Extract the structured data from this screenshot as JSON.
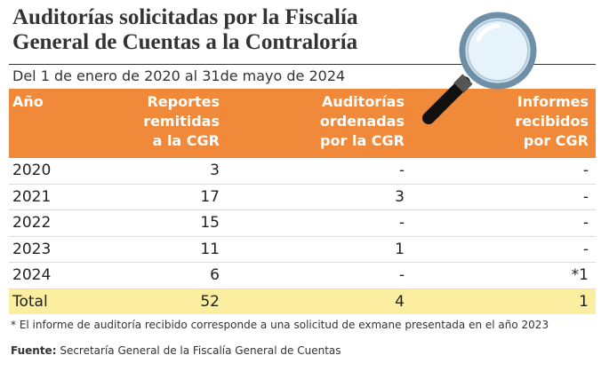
{
  "header": {
    "title": [
      "Auditorías solicitadas por la Fiscalía",
      "General de Cuentas a la Contraloría"
    ],
    "subtitle": "Del 1 de enero de 2020 al 31de mayo de 2024"
  },
  "table": {
    "columns": [
      [
        "Año"
      ],
      [
        "Reportes",
        "remitidas",
        "a la CGR"
      ],
      [
        "Auditorías",
        "ordenadas",
        "por la CGR"
      ],
      [
        "Informes",
        "recibidos",
        "por CGR"
      ]
    ],
    "rows": [
      [
        2020,
        3,
        "-",
        "-"
      ],
      [
        2021,
        17,
        3,
        "-"
      ],
      [
        2022,
        15,
        "-",
        "-"
      ],
      [
        2023,
        11,
        1,
        "-"
      ],
      [
        2024,
        6,
        "-",
        "*1"
      ]
    ],
    "total": [
      "Total",
      52,
      4,
      1
    ]
  },
  "footer": {
    "note": "* El informe de auditoría recibido corresponde a una solicitud de exmane presentada en el año 2023",
    "source_label": "Fuente:",
    "source": "Secretaría General de la Fiscalía General de Cuentas"
  }
}
